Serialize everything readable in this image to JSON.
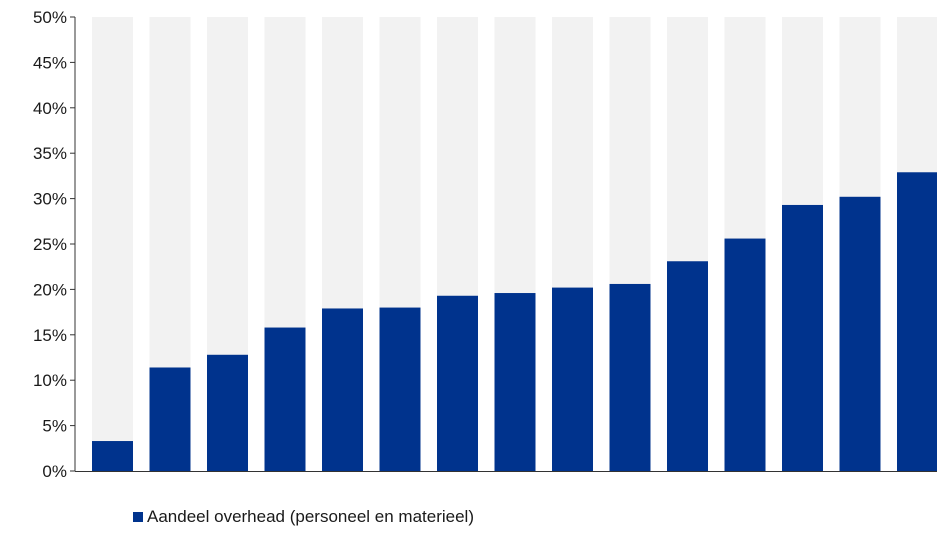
{
  "chart_data": {
    "type": "bar",
    "title": "",
    "xlabel": "",
    "ylabel": "",
    "ylim": [
      0,
      0.5
    ],
    "y_ticks": [
      "0%",
      "5%",
      "10%",
      "15%",
      "20%",
      "25%",
      "30%",
      "35%",
      "40%",
      "45%",
      "50%"
    ],
    "categories": [
      "",
      "",
      "",
      "",
      "",
      "",
      "",
      "",
      "",
      "",
      "",
      "",
      "",
      "",
      ""
    ],
    "series": [
      {
        "name": "Aandeel overhead (personeel en materieel)",
        "color": "#00338d",
        "values": [
          0.033,
          0.114,
          0.128,
          0.158,
          0.179,
          0.18,
          0.193,
          0.196,
          0.202,
          0.206,
          0.231,
          0.256,
          0.293,
          0.302,
          0.329
        ]
      }
    ],
    "background_bar_value": 0.5,
    "background_bar_color": "#f2f2f2",
    "grid": false,
    "legend_position": "bottom"
  }
}
